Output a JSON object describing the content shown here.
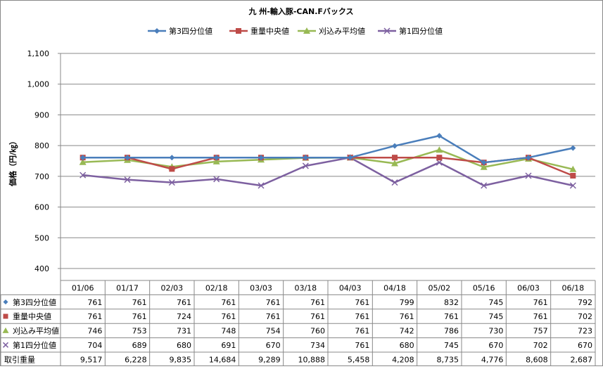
{
  "chart_data": {
    "type": "line",
    "title": "九 州-輸入豚-CAN.Fバックス",
    "xlabel": "",
    "ylabel": "価格（円/㎏）",
    "ylim": [
      400,
      1100
    ],
    "yticks": [
      "400",
      "500",
      "600",
      "700",
      "800",
      "900",
      "1,000",
      "1,100"
    ],
    "grid": true,
    "legend": "top",
    "categories": [
      "01/06",
      "01/17",
      "02/03",
      "02/18",
      "03/03",
      "03/18",
      "04/03",
      "04/18",
      "05/02",
      "05/16",
      "06/03",
      "06/18"
    ],
    "series": [
      {
        "name": "第3四分位値",
        "color": "#4a7ebb",
        "marker": "diamond",
        "values": [
          761,
          761,
          761,
          761,
          761,
          761,
          761,
          799,
          832,
          745,
          761,
          792
        ]
      },
      {
        "name": "重量中央値",
        "color": "#be4b48",
        "marker": "square",
        "values": [
          761,
          761,
          724,
          761,
          761,
          761,
          761,
          761,
          761,
          745,
          761,
          702
        ]
      },
      {
        "name": "刈込み平均値",
        "color": "#98b954",
        "marker": "triangle",
        "values": [
          746,
          753,
          731,
          748,
          754,
          760,
          761,
          742,
          786,
          730,
          757,
          723
        ]
      },
      {
        "name": "第1四分位値",
        "color": "#7d60a0",
        "marker": "x",
        "values": [
          704,
          689,
          680,
          691,
          670,
          734,
          761,
          680,
          745,
          670,
          702,
          670
        ]
      }
    ],
    "table_extra_row": {
      "name": "取引重量",
      "values": [
        "9,517",
        "6,228",
        "9,835",
        "14,684",
        "9,289",
        "10,888",
        "5,458",
        "4,208",
        "8,735",
        "4,776",
        "8,608",
        "2,687"
      ]
    }
  }
}
